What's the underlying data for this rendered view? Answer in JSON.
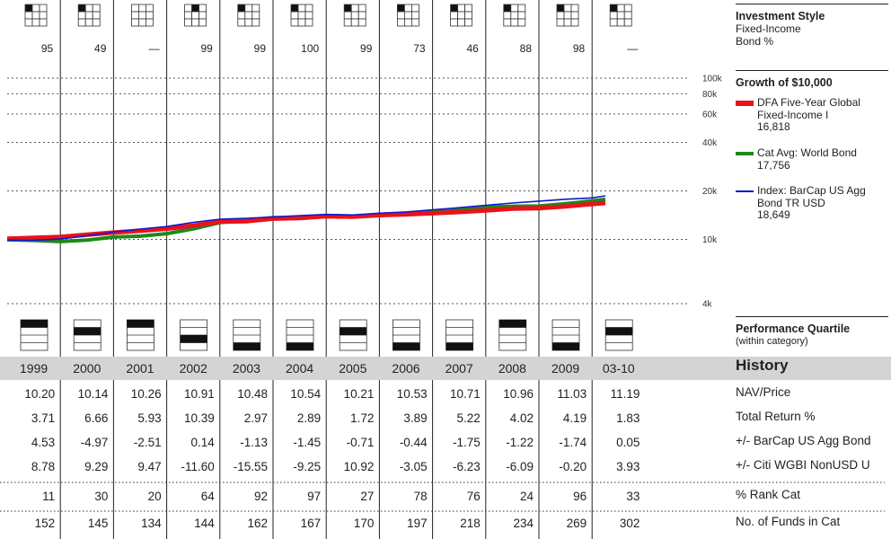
{
  "sidebar": {
    "style_title": "Investment Style",
    "style_sub1": "Fixed-Income",
    "style_sub2": "Bond %",
    "growth_title": "Growth of $10,000",
    "quartile_title": "Performance Quartile",
    "quartile_sub": "(within category)",
    "history_label": "History"
  },
  "legend": [
    {
      "line1": "DFA Five-Year Global",
      "line2": "Fixed-Income I",
      "value": "16,818",
      "color": "#e8131b"
    },
    {
      "line1": "Cat Avg: World Bond",
      "line2": "",
      "value": "17,756",
      "color": "#1a8a1a"
    },
    {
      "line1": "Index: BarCap US Agg",
      "line2": "Bond TR USD",
      "value": "18,649",
      "color": "#1515d0"
    }
  ],
  "style_boxes": [
    {
      "filled": 0,
      "bond_pct": "95"
    },
    {
      "filled": 0,
      "bond_pct": "49"
    },
    {
      "filled": null,
      "bond_pct": "—"
    },
    {
      "filled": 1,
      "bond_pct": "99"
    },
    {
      "filled": 0,
      "bond_pct": "99"
    },
    {
      "filled": 0,
      "bond_pct": "100"
    },
    {
      "filled": 0,
      "bond_pct": "99"
    },
    {
      "filled": 0,
      "bond_pct": "73"
    },
    {
      "filled": 0,
      "bond_pct": "46"
    },
    {
      "filled": 0,
      "bond_pct": "88"
    },
    {
      "filled": 0,
      "bond_pct": "98"
    },
    {
      "filled": 0,
      "bond_pct": "—"
    }
  ],
  "quartiles": [
    1,
    2,
    1,
    3,
    4,
    4,
    2,
    4,
    4,
    1,
    4,
    2
  ],
  "years": [
    "1999",
    "2000",
    "2001",
    "2002",
    "2003",
    "2004",
    "2005",
    "2006",
    "2007",
    "2008",
    "2009",
    "03-10"
  ],
  "rows": [
    {
      "label": "NAV/Price",
      "values": [
        "10.20",
        "10.14",
        "10.26",
        "10.91",
        "10.48",
        "10.54",
        "10.21",
        "10.53",
        "10.71",
        "10.96",
        "11.03",
        "11.19"
      ]
    },
    {
      "label": "Total Return %",
      "values": [
        "3.71",
        "6.66",
        "5.93",
        "10.39",
        "2.97",
        "2.89",
        "1.72",
        "3.89",
        "5.22",
        "4.02",
        "4.19",
        "1.83"
      ]
    },
    {
      "label": "+/- BarCap US Agg Bond",
      "values": [
        "4.53",
        "-4.97",
        "-2.51",
        "0.14",
        "-1.13",
        "-1.45",
        "-0.71",
        "-0.44",
        "-1.75",
        "-1.22",
        "-1.74",
        "0.05"
      ]
    },
    {
      "label": "+/- Citi WGBI NonUSD U",
      "values": [
        "8.78",
        "9.29",
        "9.47",
        "-11.60",
        "-15.55",
        "-9.25",
        "10.92",
        "-3.05",
        "-6.23",
        "-6.09",
        "-0.20",
        "3.93"
      ]
    },
    {
      "label": "% Rank Cat",
      "values": [
        "11",
        "30",
        "20",
        "64",
        "92",
        "97",
        "27",
        "78",
        "76",
        "24",
        "96",
        "33"
      ]
    },
    {
      "label": "No. of Funds in Cat",
      "values": [
        "152",
        "145",
        "134",
        "144",
        "162",
        "167",
        "170",
        "197",
        "218",
        "234",
        "269",
        "302"
      ]
    }
  ],
  "chart_data": {
    "type": "line",
    "title": "Growth of $10,000",
    "y_scale": "log",
    "ylim": [
      4000,
      100000
    ],
    "ytick_labels": [
      "100k",
      "80k",
      "60k",
      "40k",
      "20k",
      "10k",
      "4k"
    ],
    "y_ticks": [
      100000,
      80000,
      60000,
      40000,
      20000,
      10000,
      4000
    ],
    "x": [
      1999.0,
      1999.5,
      2000.0,
      2000.5,
      2001.0,
      2001.5,
      2002.0,
      2002.5,
      2003.0,
      2003.5,
      2004.0,
      2004.5,
      2005.0,
      2005.5,
      2006.0,
      2006.5,
      2007.0,
      2007.5,
      2008.0,
      2008.5,
      2009.0,
      2009.5,
      2010.0,
      2010.25
    ],
    "series": [
      {
        "name": "DFA Five-Year Global Fixed-Income I",
        "color": "#e8131b",
        "width": 5,
        "values": [
          10100,
          10240,
          10360,
          10690,
          11030,
          11320,
          11650,
          12180,
          12880,
          12990,
          13450,
          13570,
          13930,
          13830,
          14140,
          14320,
          14530,
          14800,
          15130,
          15540,
          15640,
          16040,
          16580,
          16818
        ]
      },
      {
        "name": "Cat Avg: World Bond",
        "color": "#1a8a1a",
        "width": 4,
        "values": [
          9950,
          9860,
          9700,
          9900,
          10350,
          10480,
          10860,
          11620,
          12720,
          13150,
          13650,
          13690,
          14080,
          13950,
          14260,
          14590,
          14980,
          15360,
          15870,
          16060,
          16100,
          16650,
          17350,
          17756
        ]
      },
      {
        "name": "Index: BarCap US Agg Bond TR USD",
        "color": "#1515d0",
        "width": 1.6,
        "values": [
          9900,
          9870,
          10060,
          10530,
          11120,
          11600,
          12020,
          12750,
          13350,
          13520,
          13780,
          14050,
          14300,
          14190,
          14550,
          14800,
          15280,
          15740,
          16280,
          16810,
          17280,
          17750,
          18100,
          18649
        ]
      }
    ]
  }
}
